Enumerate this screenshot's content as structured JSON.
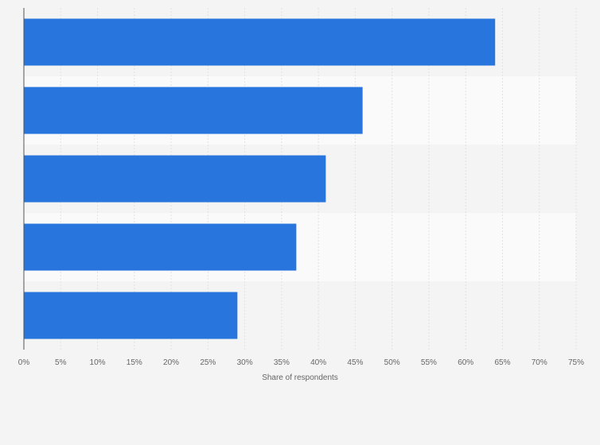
{
  "chart_data": {
    "type": "bar",
    "orientation": "horizontal",
    "categories": [
      "",
      "",
      "",
      "",
      ""
    ],
    "values": [
      64,
      46,
      41,
      37,
      29
    ],
    "title": "",
    "xlabel": "Share of respondents",
    "ylabel": "",
    "xlim": [
      0,
      75
    ],
    "x_ticks": [
      "0%",
      "5%",
      "10%",
      "15%",
      "20%",
      "25%",
      "30%",
      "35%",
      "40%",
      "45%",
      "50%",
      "55%",
      "60%",
      "65%",
      "70%",
      "75%"
    ],
    "grid": true,
    "bar_color": "#2876dd",
    "band_colors": [
      "#f4f4f4",
      "#fafafa"
    ]
  }
}
